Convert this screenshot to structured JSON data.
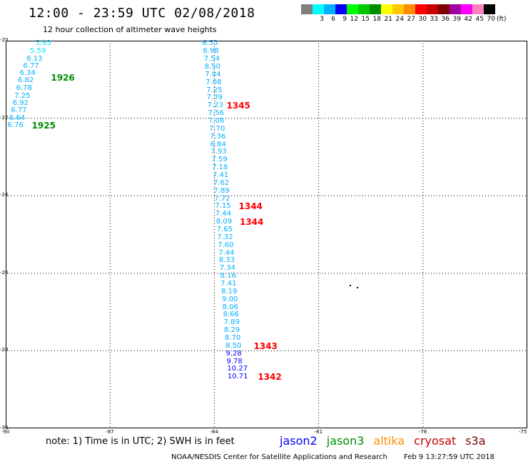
{
  "header": {
    "title": "12:00 - 23:59 UTC 02/08/2018",
    "subtitle": "12 hour collection of altimeter wave heights"
  },
  "colorbar": {
    "colors": [
      "#7f7f7f",
      "#00ffff",
      "#00b0ff",
      "#0000ff",
      "#00ff00",
      "#00c800",
      "#008c00",
      "#ffff00",
      "#ffc800",
      "#ff8c00",
      "#ff0000",
      "#c80000",
      "#800000",
      "#a000a0",
      "#ff00ff",
      "#ff80c0",
      "#000000"
    ],
    "labels": [
      "",
      "3",
      "6",
      "9",
      "12",
      "15",
      "18",
      "21",
      "24",
      "27",
      "30",
      "33",
      "36",
      "39",
      "42",
      "45",
      "70"
    ],
    "unit": "(ft)"
  },
  "map": {
    "lon_range": [
      -90,
      -75
    ],
    "lat_range": [
      -30,
      -20
    ],
    "lon_ticks": [
      "-90",
      "-87",
      "-84",
      "-81",
      "-78",
      "-75"
    ],
    "lat_ticks": [
      "-20",
      "-22",
      "-24",
      "-26",
      "-28",
      "-30"
    ],
    "swh_points": [
      {
        "lon": -89.15,
        "lat": -20.08,
        "value": "5.93",
        "mission": "jason3",
        "color": "#00e0ff"
      },
      {
        "lon": -89.3,
        "lat": -20.27,
        "value": "5.59",
        "mission": "jason3",
        "color": "#00e0ff"
      },
      {
        "lon": -89.4,
        "lat": -20.47,
        "value": "6.13",
        "mission": "jason3",
        "color": "#00b0ff"
      },
      {
        "lon": -89.5,
        "lat": -20.66,
        "value": "6.77",
        "mission": "jason3",
        "color": "#00b0ff"
      },
      {
        "lon": -89.6,
        "lat": -20.85,
        "value": "6.34",
        "mission": "jason3",
        "color": "#00b0ff"
      },
      {
        "lon": -89.65,
        "lat": -21.04,
        "value": "6.82",
        "mission": "jason3",
        "color": "#00b0ff"
      },
      {
        "lon": -89.7,
        "lat": -21.23,
        "value": "6.78",
        "mission": "jason3",
        "color": "#00b0ff"
      },
      {
        "lon": -89.75,
        "lat": -21.43,
        "value": "7.25",
        "mission": "jason3",
        "color": "#00b0ff"
      },
      {
        "lon": -89.8,
        "lat": -21.62,
        "value": "6.92",
        "mission": "jason3",
        "color": "#00b0ff"
      },
      {
        "lon": -89.85,
        "lat": -21.81,
        "value": "6.77",
        "mission": "jason3",
        "color": "#00b0ff"
      },
      {
        "lon": -89.9,
        "lat": -22.0,
        "value": "6.64",
        "mission": "jason3",
        "color": "#00b0ff"
      },
      {
        "lon": -89.95,
        "lat": -22.2,
        "value": "6.76",
        "mission": "jason3",
        "color": "#00b0ff"
      },
      {
        "lon": -84.35,
        "lat": -20.08,
        "value": "6.53",
        "mission": "jason2",
        "color": "#00b0ff"
      },
      {
        "lon": -84.33,
        "lat": -20.28,
        "value": "6.98",
        "mission": "jason2",
        "color": "#00b0ff"
      },
      {
        "lon": -84.3,
        "lat": -20.48,
        "value": "7.54",
        "mission": "jason2",
        "color": "#00b0ff"
      },
      {
        "lon": -84.28,
        "lat": -20.68,
        "value": "8.50",
        "mission": "jason2",
        "color": "#00b0ff"
      },
      {
        "lon": -84.27,
        "lat": -20.88,
        "value": "7.04",
        "mission": "jason2",
        "color": "#00b0ff"
      },
      {
        "lon": -84.25,
        "lat": -21.08,
        "value": "7.08",
        "mission": "jason2",
        "color": "#00b0ff"
      },
      {
        "lon": -84.23,
        "lat": -21.28,
        "value": "7.25",
        "mission": "jason2",
        "color": "#00b0ff"
      },
      {
        "lon": -84.22,
        "lat": -21.48,
        "value": "7.39",
        "mission": "jason2",
        "color": "#00b0ff"
      },
      {
        "lon": -84.2,
        "lat": -21.68,
        "value": "7.23",
        "mission": "jason2",
        "color": "#00b0ff"
      },
      {
        "lon": -84.18,
        "lat": -21.88,
        "value": "7.56",
        "mission": "jason2",
        "color": "#00b0ff"
      },
      {
        "lon": -84.17,
        "lat": -22.08,
        "value": "7.08",
        "mission": "jason2",
        "color": "#00b0ff"
      },
      {
        "lon": -84.15,
        "lat": -22.28,
        "value": "7.70",
        "mission": "jason2",
        "color": "#00b0ff"
      },
      {
        "lon": -84.13,
        "lat": -22.48,
        "value": "7.36",
        "mission": "jason2",
        "color": "#00b0ff"
      },
      {
        "lon": -84.12,
        "lat": -22.68,
        "value": "6.84",
        "mission": "jason2",
        "color": "#00b0ff"
      },
      {
        "lon": -84.1,
        "lat": -22.88,
        "value": "7.93",
        "mission": "jason2",
        "color": "#00b0ff"
      },
      {
        "lon": -84.08,
        "lat": -23.08,
        "value": "7.59",
        "mission": "jason2",
        "color": "#00b0ff"
      },
      {
        "lon": -84.07,
        "lat": -23.28,
        "value": "7.18",
        "mission": "jason2",
        "color": "#00b0ff"
      },
      {
        "lon": -84.05,
        "lat": -23.48,
        "value": "7.41",
        "mission": "jason2",
        "color": "#00b0ff"
      },
      {
        "lon": -84.03,
        "lat": -23.68,
        "value": "7.62",
        "mission": "jason2",
        "color": "#00b0ff"
      },
      {
        "lon": -84.02,
        "lat": -23.88,
        "value": "7.89",
        "mission": "jason2",
        "color": "#00b0ff"
      },
      {
        "lon": -84.0,
        "lat": -24.08,
        "value": "7.72",
        "mission": "jason2",
        "color": "#00b0ff"
      },
      {
        "lon": -83.98,
        "lat": -24.28,
        "value": "7.15",
        "mission": "jason2",
        "color": "#00b0ff"
      },
      {
        "lon": -83.97,
        "lat": -24.48,
        "value": "7.44",
        "mission": "jason2",
        "color": "#00b0ff"
      },
      {
        "lon": -83.95,
        "lat": -24.68,
        "value": "8.09",
        "mission": "jason2",
        "color": "#00b0ff"
      },
      {
        "lon": -83.93,
        "lat": -24.88,
        "value": "7.65",
        "mission": "jason2",
        "color": "#00b0ff"
      },
      {
        "lon": -83.92,
        "lat": -25.08,
        "value": "7.32",
        "mission": "jason2",
        "color": "#00b0ff"
      },
      {
        "lon": -83.9,
        "lat": -25.28,
        "value": "7.60",
        "mission": "jason2",
        "color": "#00b0ff"
      },
      {
        "lon": -83.88,
        "lat": -25.48,
        "value": "7.44",
        "mission": "jason2",
        "color": "#00b0ff"
      },
      {
        "lon": -83.87,
        "lat": -25.68,
        "value": "8.33",
        "mission": "jason2",
        "color": "#00b0ff"
      },
      {
        "lon": -83.85,
        "lat": -25.88,
        "value": "7.34",
        "mission": "jason2",
        "color": "#00b0ff"
      },
      {
        "lon": -83.83,
        "lat": -26.08,
        "value": "8.16",
        "mission": "jason2",
        "color": "#00b0ff"
      },
      {
        "lon": -83.82,
        "lat": -26.28,
        "value": "7.41",
        "mission": "jason2",
        "color": "#00b0ff"
      },
      {
        "lon": -83.8,
        "lat": -26.48,
        "value": "8.19",
        "mission": "jason2",
        "color": "#00b0ff"
      },
      {
        "lon": -83.78,
        "lat": -26.68,
        "value": "9.00",
        "mission": "jason2",
        "color": "#00b0ff"
      },
      {
        "lon": -83.77,
        "lat": -26.88,
        "value": "8.06",
        "mission": "jason2",
        "color": "#00b0ff"
      },
      {
        "lon": -83.75,
        "lat": -27.08,
        "value": "8.66",
        "mission": "jason2",
        "color": "#00b0ff"
      },
      {
        "lon": -83.73,
        "lat": -27.28,
        "value": "7.89",
        "mission": "jason2",
        "color": "#00b0ff"
      },
      {
        "lon": -83.72,
        "lat": -27.48,
        "value": "8.29",
        "mission": "jason2",
        "color": "#00b0ff"
      },
      {
        "lon": -83.7,
        "lat": -27.68,
        "value": "8.70",
        "mission": "jason2",
        "color": "#00b0ff"
      },
      {
        "lon": -83.68,
        "lat": -27.88,
        "value": "8.50",
        "mission": "jason2",
        "color": "#00b0ff"
      },
      {
        "lon": -83.67,
        "lat": -28.08,
        "value": "9.28",
        "mission": "jason2",
        "color": "#0000ff"
      },
      {
        "lon": -83.65,
        "lat": -28.28,
        "value": "9.78",
        "mission": "jason2",
        "color": "#0000ff"
      },
      {
        "lon": -83.63,
        "lat": -28.48,
        "value": "10.27",
        "mission": "jason2",
        "color": "#0000ff"
      },
      {
        "lon": -83.62,
        "lat": -28.68,
        "value": "10.71",
        "mission": "jason2",
        "color": "#0000ff"
      }
    ],
    "time_labels": [
      {
        "lon": -88.7,
        "lat": -20.95,
        "text": "1926",
        "color": "#008c00"
      },
      {
        "lon": -89.25,
        "lat": -22.2,
        "text": "1925",
        "color": "#008c00"
      },
      {
        "lon": -83.65,
        "lat": -21.68,
        "text": "1345",
        "color": "#ff0000"
      },
      {
        "lon": -83.3,
        "lat": -24.28,
        "text": "1344",
        "color": "#ff0000"
      },
      {
        "lon": -83.27,
        "lat": -24.68,
        "text": "1344",
        "color": "#ff0000"
      },
      {
        "lon": -82.87,
        "lat": -27.88,
        "text": "1343",
        "color": "#ff0000"
      },
      {
        "lon": -82.75,
        "lat": -28.68,
        "text": "1342",
        "color": "#ff0000"
      }
    ],
    "island_dots": [
      {
        "lon": -80.1,
        "lat": -26.3
      },
      {
        "lon": -79.9,
        "lat": -26.35
      }
    ]
  },
  "note": "note: 1) Time is in UTC; 2) SWH is in feet",
  "legend": [
    {
      "label": "jason2",
      "color": "#0000ff"
    },
    {
      "label": "jason3",
      "color": "#008c00"
    },
    {
      "label": "altika",
      "color": "#ff8c00"
    },
    {
      "label": "cryosat",
      "color": "#c80000"
    },
    {
      "label": "s3a",
      "color": "#800000"
    }
  ],
  "footer": {
    "credit": "NOAA/NESDIS Center for Satellite Applications and Research",
    "timestamp": "Feb  9 13:27:59 UTC 2018"
  }
}
